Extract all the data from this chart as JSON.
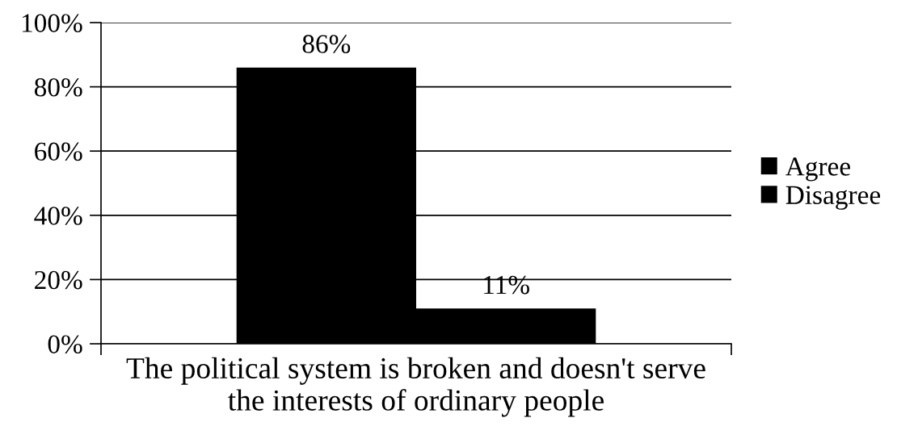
{
  "chart_data": {
    "type": "bar",
    "categories": [
      "The political system is broken and doesn't serve\nthe interests of ordinary people"
    ],
    "series": [
      {
        "name": "Agree",
        "color": "#000000",
        "values": [
          86
        ],
        "value_labels": [
          "86%"
        ]
      },
      {
        "name": "Disagree",
        "color": "#000000",
        "values": [
          11
        ],
        "value_labels": [
          "11%"
        ]
      }
    ],
    "ylim": [
      0,
      100
    ],
    "yticks": [
      {
        "value": 0,
        "label": "0%"
      },
      {
        "value": 20,
        "label": "20%"
      },
      {
        "value": 40,
        "label": "40%"
      },
      {
        "value": 60,
        "label": "60%"
      },
      {
        "value": 80,
        "label": "80%"
      },
      {
        "value": 100,
        "label": "100%"
      }
    ],
    "grid": "y",
    "legend": "right"
  }
}
